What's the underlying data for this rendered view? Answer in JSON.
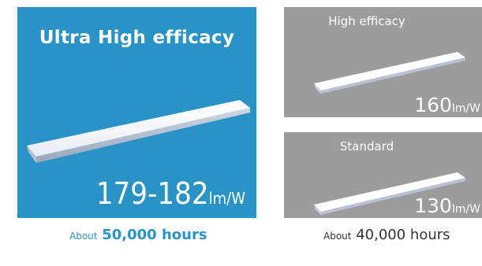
{
  "ultra": {
    "title": "Ultra High efficacy",
    "efficacy_value": "179-182",
    "efficacy_unit": "lm/W",
    "caption_prefix": "About",
    "caption_value": "50,000 hours"
  },
  "high": {
    "title": "High efficacy",
    "efficacy_value": "160",
    "efficacy_unit": "lm/W"
  },
  "standard": {
    "title": "Standard",
    "efficacy_value": "130",
    "efficacy_unit": "lm/W",
    "caption_prefix": "About",
    "caption_value": "40,000 hours"
  },
  "colors": {
    "ultra_panel": "#2a93c6",
    "side_panel": "#9c9c9c"
  },
  "icons": [
    "led-fixture-icon"
  ]
}
